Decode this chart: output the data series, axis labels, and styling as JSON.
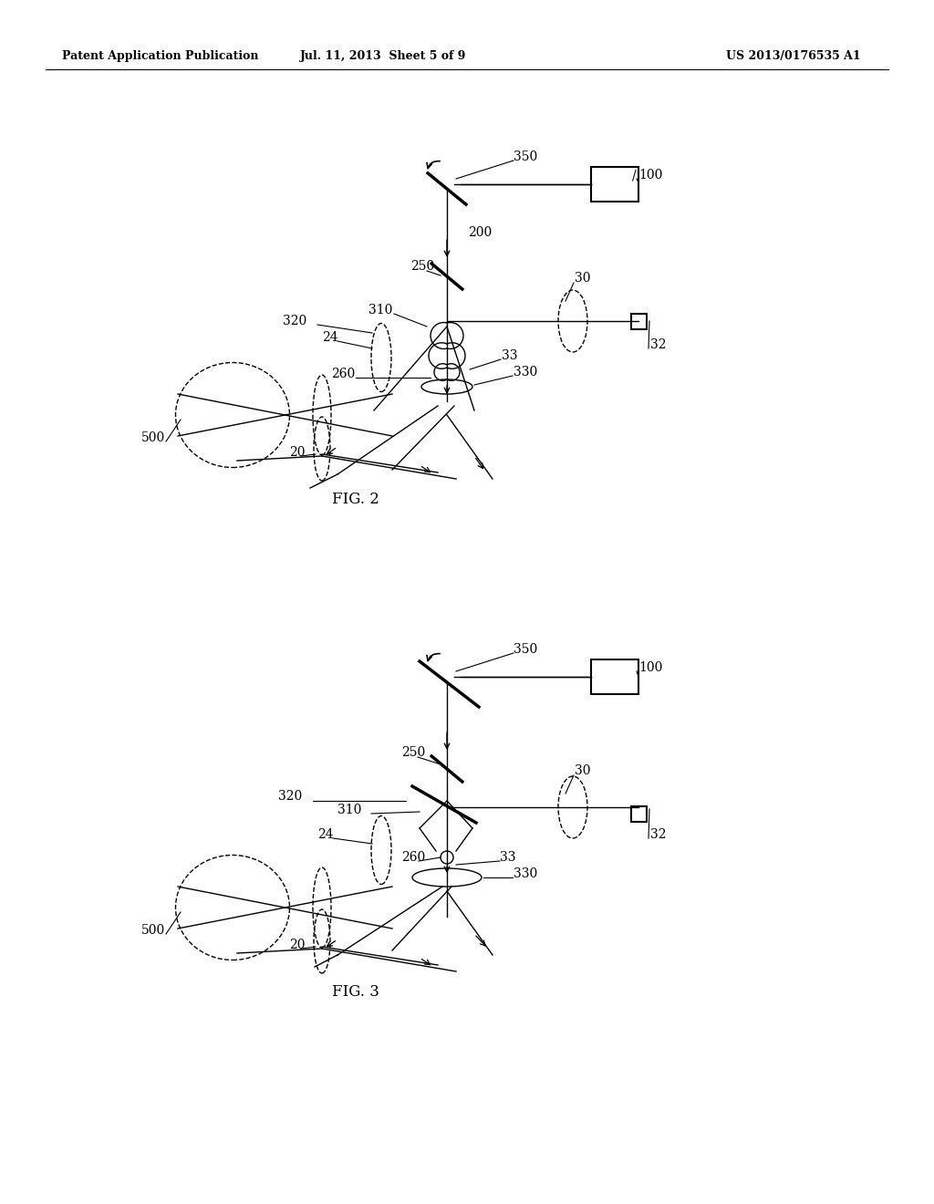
{
  "bg_color": "#ffffff",
  "header_left": "Patent Application Publication",
  "header_mid": "Jul. 11, 2013  Sheet 5 of 9",
  "header_right": "US 2013/0176535 A1",
  "fig2_caption": "FIG. 2",
  "fig3_caption": "FIG. 3",
  "lw_thin": 1.0,
  "lw_med": 1.5,
  "lw_thick": 2.5,
  "fs_label": 10,
  "fs_header": 9,
  "fs_caption": 12
}
